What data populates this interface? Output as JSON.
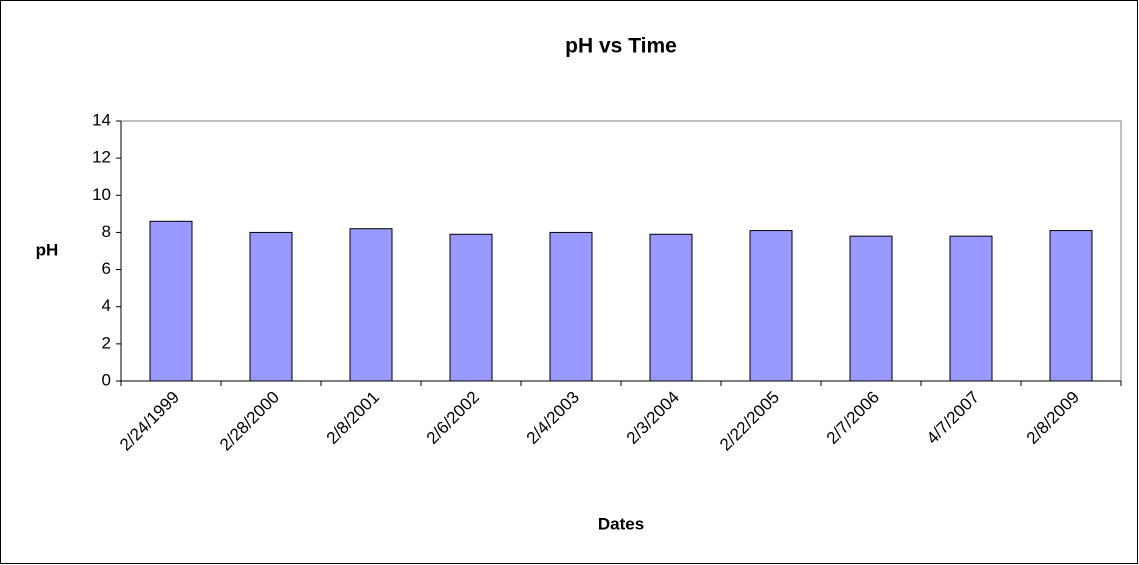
{
  "chart_data": {
    "type": "bar",
    "title": "pH vs Time",
    "x_label": "Dates",
    "y_label": "pH",
    "categories": [
      "2/24/1999",
      "2/28/2000",
      "2/8/2001",
      "2/6/2002",
      "2/4/2003",
      "2/3/2004",
      "2/22/2005",
      "2/7/2006",
      "4/7/2007",
      "2/8/2009"
    ],
    "values": [
      8.6,
      8.0,
      8.2,
      7.9,
      8.0,
      7.9,
      8.1,
      7.8,
      7.8,
      8.1
    ],
    "color": "#9999ff",
    "ylim": [
      0,
      14
    ],
    "yticks": [
      0,
      2,
      4,
      6,
      8,
      10,
      12,
      14
    ],
    "grid": false
  }
}
